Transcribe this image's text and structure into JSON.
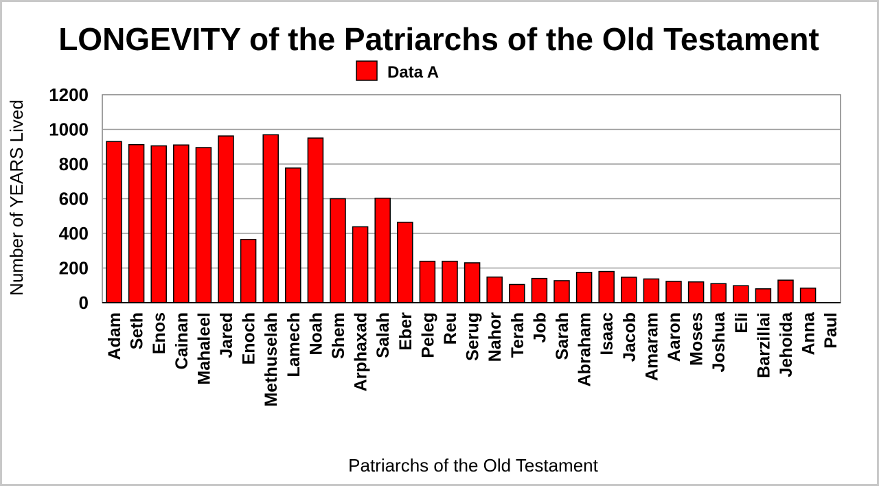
{
  "chart_data": {
    "type": "bar",
    "title": "LONGEVITY of the Patriarchs of the Old Testament",
    "xlabel": "Patriarchs of the Old Testament",
    "ylabel": "Number of YEARS Lived",
    "ylim": [
      0,
      1200
    ],
    "yticks": [
      "0",
      "200",
      "400",
      "600",
      "800",
      "1000",
      "1200"
    ],
    "grid": true,
    "legend": "top-center",
    "categories": [
      "Adam",
      "Seth",
      "Enos",
      "Cainan",
      "Mahaleel",
      "Jared",
      "Enoch",
      "Methuselah",
      "Lamech",
      "Noah",
      "Shem",
      "Arphaxad",
      "Salah",
      "Eber",
      "Peleg",
      "Reu",
      "Serug",
      "Nahor",
      "Terah",
      "Job",
      "Sarah",
      "Abraham",
      "Isaac",
      "Jacob",
      "Amaram",
      "Aaron",
      "Moses",
      "Joshua",
      "Eli",
      "Barzillai",
      "Jehoida",
      "Anna",
      "Paul"
    ],
    "series": [
      {
        "name": "Data A",
        "color": "#ff0000",
        "values": [
          930,
          912,
          905,
          910,
          895,
          962,
          365,
          969,
          777,
          950,
          600,
          438,
          603,
          464,
          239,
          239,
          230,
          148,
          105,
          140,
          127,
          175,
          180,
          147,
          137,
          123,
          120,
          110,
          98,
          80,
          130,
          84,
          0
        ]
      }
    ]
  }
}
